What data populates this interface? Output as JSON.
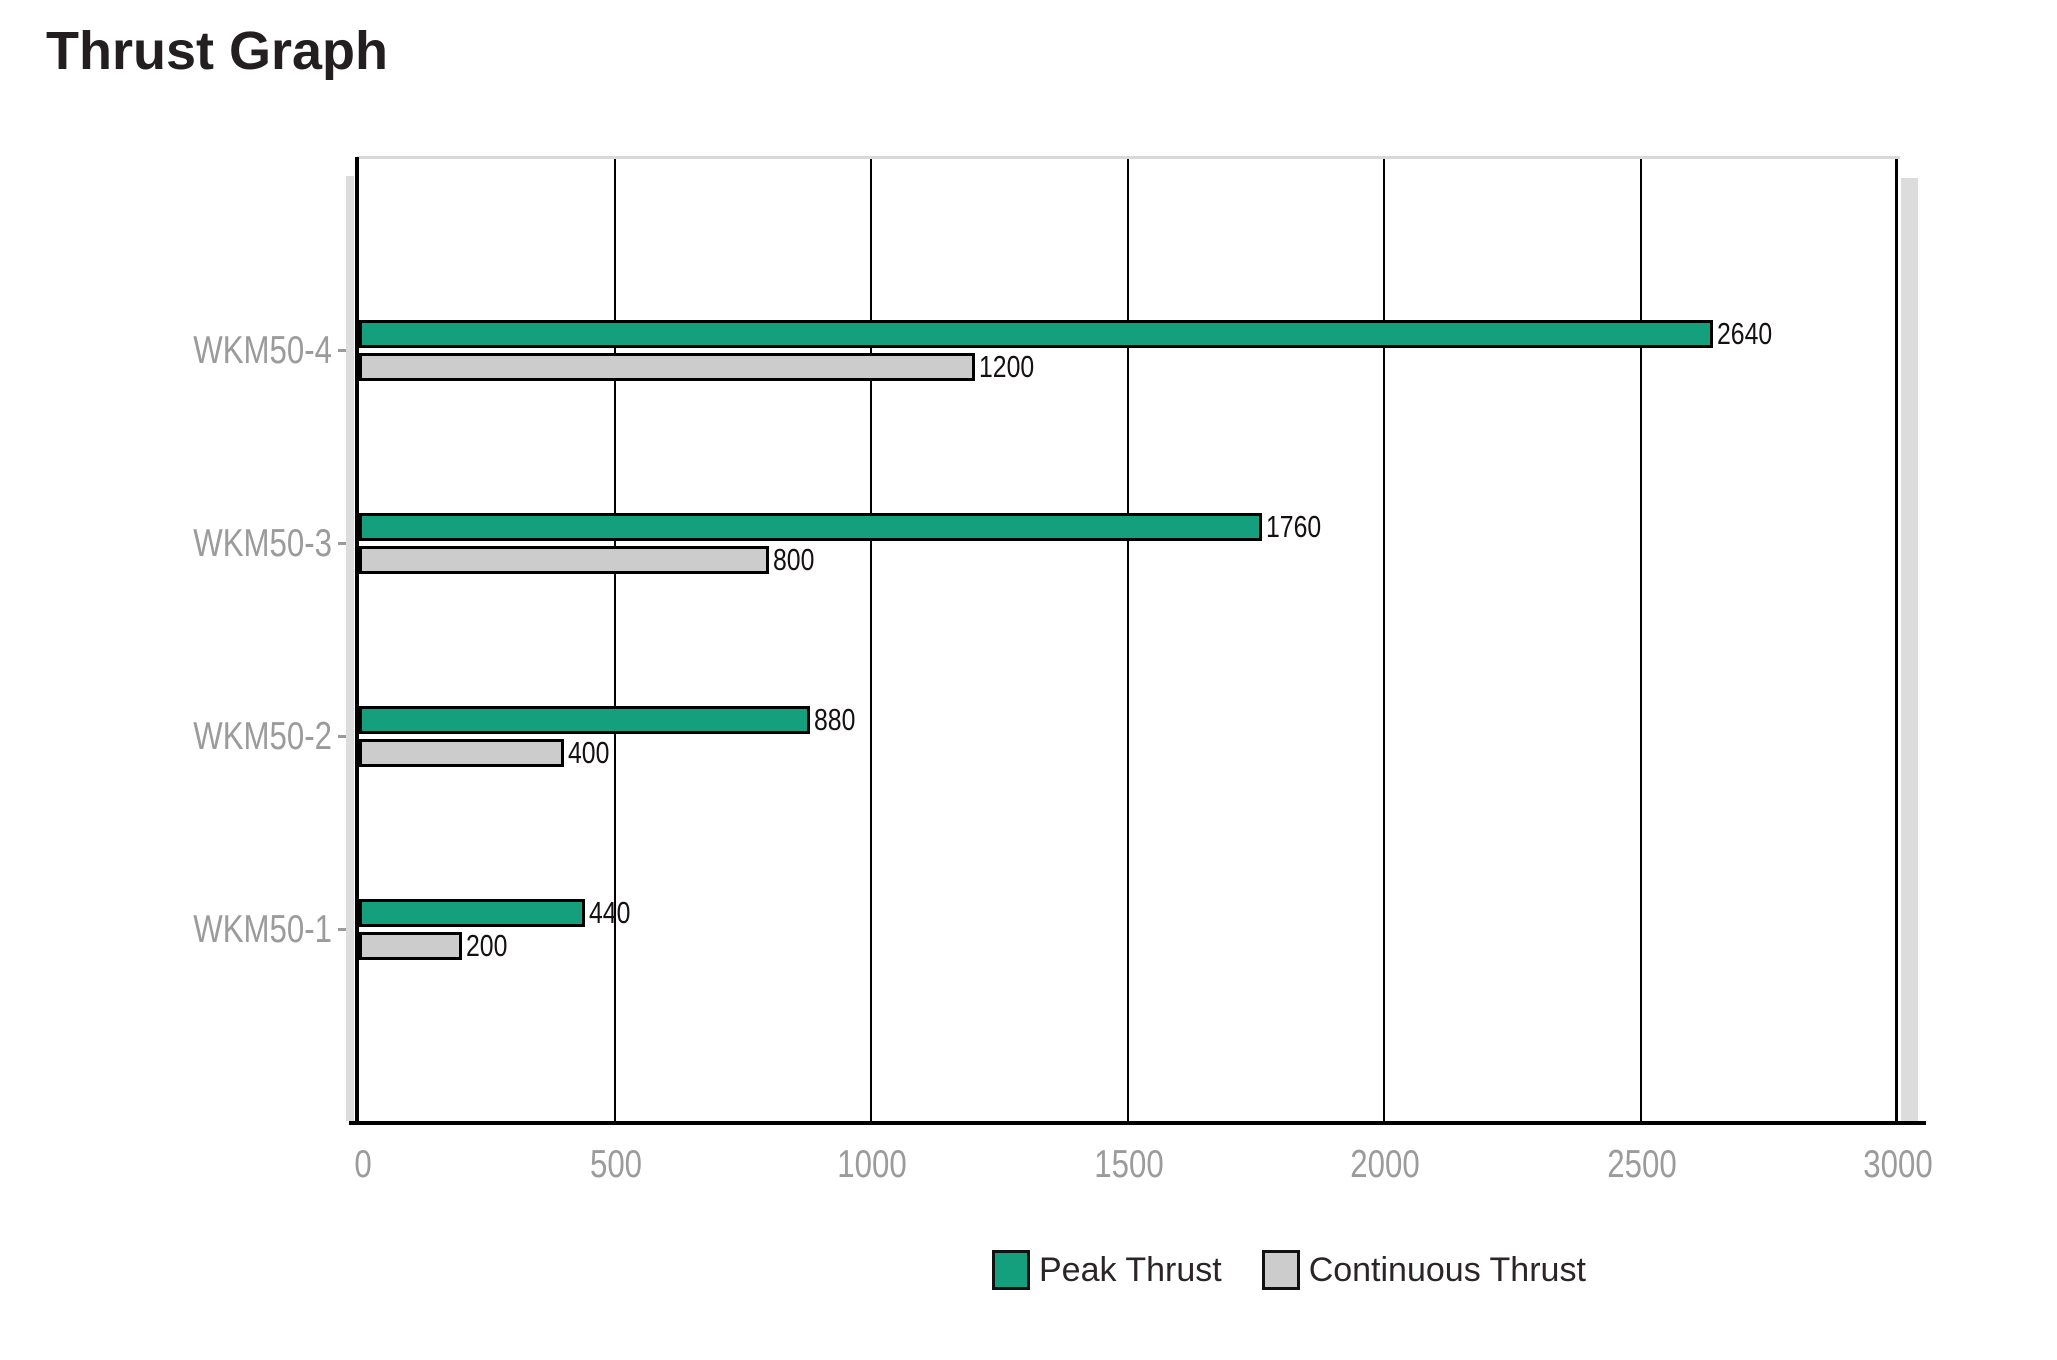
{
  "chart_data": {
    "type": "bar",
    "orientation": "horizontal",
    "title": "Thrust Graph",
    "categories": [
      "WKM50-4",
      "WKM50-3",
      "WKM50-2",
      "WKM50-1"
    ],
    "series": [
      {
        "name": "Peak Thrust",
        "color": "#14a07d",
        "values": [
          2640,
          1760,
          880,
          440
        ]
      },
      {
        "name": "Continuous Thrust",
        "color": "#cccccc",
        "values": [
          1200,
          800,
          400,
          200
        ]
      }
    ],
    "value_labels": [
      [
        "2640",
        "1200"
      ],
      [
        "1760",
        "800"
      ],
      [
        "880",
        "400"
      ],
      [
        "440",
        "200"
      ]
    ],
    "xlabel": "",
    "ylabel": "",
    "xlim": [
      0,
      3000
    ],
    "xticks": [
      0,
      500,
      1000,
      1500,
      2000,
      2500,
      3000
    ],
    "xtick_labels": [
      "0",
      "500",
      "1000",
      "1500",
      "2000",
      "2500",
      "3000"
    ],
    "grid": "vertical-black",
    "legend_position": "bottom-center",
    "colors": {
      "bar_border": "#000000",
      "axis_line": "#000000",
      "axis_text": "#9b9b9b",
      "value_text": "#151011",
      "plot_shadow": "#dcdcdc",
      "background": "#ffffff"
    }
  }
}
